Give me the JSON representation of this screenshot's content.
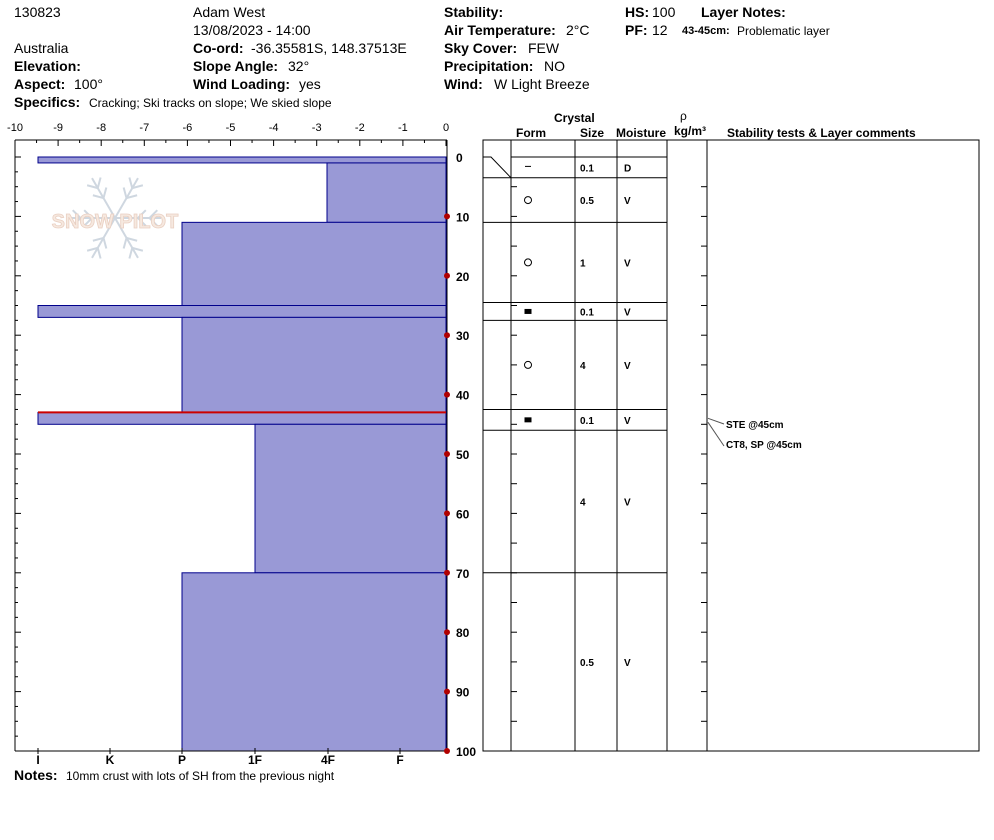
{
  "header": {
    "id": "130823",
    "observer": "Adam West",
    "datetime": "13/08/2023 - 14:00",
    "location": "Australia",
    "elevation_label": "Elevation:",
    "elevation_value": "",
    "aspect_label": "Aspect:",
    "aspect_value": "100°",
    "coord_label": "Co-ord:",
    "coord_value": "-36.35581S, 148.37513E",
    "slope_label": "Slope Angle:",
    "slope_value": "32°",
    "wind_loading_label": "Wind Loading:",
    "wind_loading_value": "yes",
    "stability_label": "Stability:",
    "stability_value": "",
    "air_temp_label": "Air Temperature:",
    "air_temp_value": "2°C",
    "sky_label": "Sky Cover:",
    "sky_value": "FEW",
    "precip_label": "Precipitation:",
    "precip_value": "NO",
    "wind_label": "Wind:",
    "wind_value": "W Light Breeze",
    "hs_label": "HS:",
    "hs_value": "100",
    "pf_label": "PF:",
    "pf_value": "12",
    "layer_notes_label": "Layer Notes:",
    "layer_note_range": "43-45cm:",
    "layer_note_text": "Problematic layer",
    "specifics_label": "Specifics:",
    "specifics_value": "Cracking;  Ski tracks on slope;  We skied slope"
  },
  "notes": {
    "label": "Notes:",
    "text": "10mm crust with lots of SH from the previous night"
  },
  "table_headers": {
    "crystal": "Crystal",
    "form": "Form",
    "size": "Size",
    "moisture": "Moisture",
    "rho": "ρ",
    "density_unit": "kg/m³",
    "comments": "Stability tests & Layer comments"
  },
  "watermark": "SNOW PILOT",
  "colors": {
    "fill": "#9999d6",
    "stroke": "#00008b",
    "marker": "#b00000",
    "problem_line": "#cc0000"
  },
  "chart_data": {
    "type": "snow_profile",
    "temperature_axis": {
      "ticks": [
        -10,
        -9,
        -8,
        -7,
        -6,
        -5,
        -4,
        -3,
        -2,
        -1,
        0
      ],
      "range": [
        -10,
        0
      ]
    },
    "depth_axis": {
      "ticks": [
        0,
        10,
        20,
        30,
        40,
        50,
        60,
        70,
        80,
        90,
        100
      ],
      "range": [
        0,
        100
      ],
      "unit": "cm"
    },
    "hardness_labels": [
      "I",
      "K",
      "P",
      "1F",
      "4F",
      "F"
    ],
    "hardness_layers": [
      {
        "top": 0,
        "bottom": 1,
        "hardness": "I"
      },
      {
        "top": 1,
        "bottom": 11,
        "hardness": "4F-"
      },
      {
        "top": 11,
        "bottom": 25,
        "hardness": "P"
      },
      {
        "top": 25,
        "bottom": 27,
        "hardness": "I"
      },
      {
        "top": 27,
        "bottom": 43,
        "hardness": "P"
      },
      {
        "top": 43,
        "bottom": 45,
        "hardness": "I"
      },
      {
        "top": 45,
        "bottom": 70,
        "hardness": "1F"
      },
      {
        "top": 70,
        "bottom": 100,
        "hardness": "P"
      }
    ],
    "problem_layer_depth": 43,
    "layers_table": [
      {
        "top": 0,
        "bottom": 3.5,
        "form": "dash",
        "size": "0.1",
        "moisture": "D"
      },
      {
        "top": 3.5,
        "bottom": 11,
        "form": "circle",
        "size": "0.5",
        "moisture": "V"
      },
      {
        "top": 11,
        "bottom": 24.5,
        "form": "circle",
        "size": "1",
        "moisture": "V"
      },
      {
        "top": 24.5,
        "bottom": 27.5,
        "form": "square",
        "size": "0.1",
        "moisture": "V"
      },
      {
        "top": 27.5,
        "bottom": 42.5,
        "form": "circle",
        "size": "4",
        "moisture": "V"
      },
      {
        "top": 42.5,
        "bottom": 46,
        "form": "square",
        "size": "0.1",
        "moisture": "V"
      },
      {
        "top": 46,
        "bottom": 70,
        "form": "",
        "size": "4",
        "moisture": "V"
      },
      {
        "top": 70,
        "bottom": 100,
        "form": "",
        "size": "0.5",
        "moisture": "V"
      }
    ],
    "stability_tests": [
      {
        "label": "STE @45cm",
        "depth": 45
      },
      {
        "label": "CT8, SP @45cm",
        "depth": 45
      }
    ]
  }
}
